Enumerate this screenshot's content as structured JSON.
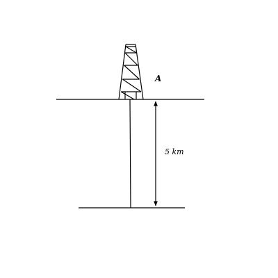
{
  "diagram": {
    "tower_label": "A",
    "depth_label": "5 km"
  },
  "colors": {
    "stroke": "#000000",
    "background": "#ffffff"
  }
}
